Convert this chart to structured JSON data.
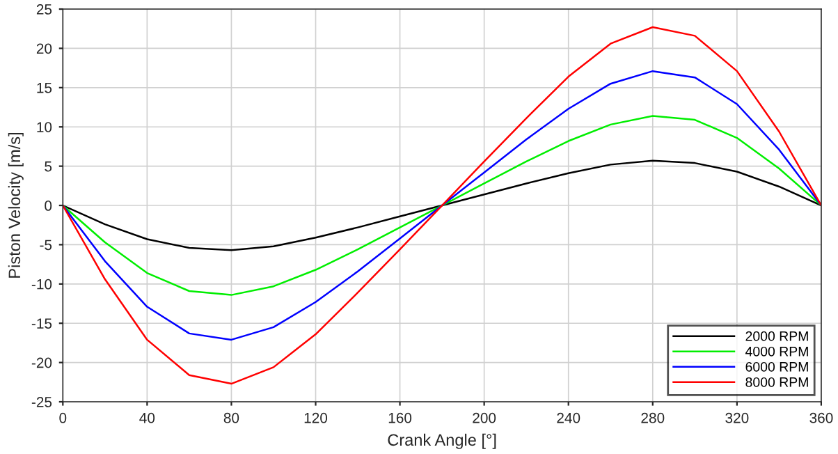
{
  "chart_data": {
    "type": "line",
    "xlabel": "Crank Angle [°]",
    "ylabel": "Piston Velocity [m/s]",
    "x": [
      0,
      20,
      40,
      60,
      80,
      100,
      120,
      140,
      160,
      180,
      200,
      220,
      240,
      260,
      280,
      300,
      320,
      340,
      360
    ],
    "series": [
      {
        "name": "2000 RPM",
        "color": "#000000",
        "values": [
          0,
          -2.4,
          -4.3,
          -5.4,
          -5.7,
          -5.2,
          -4.1,
          -2.8,
          -1.4,
          0,
          1.4,
          2.8,
          4.1,
          5.2,
          5.7,
          5.4,
          4.3,
          2.4,
          0
        ]
      },
      {
        "name": "4000 RPM",
        "color": "#00ee00",
        "values": [
          0,
          -4.7,
          -8.6,
          -10.9,
          -11.4,
          -10.3,
          -8.2,
          -5.6,
          -2.8,
          0,
          2.8,
          5.6,
          8.2,
          10.3,
          11.4,
          10.9,
          8.6,
          4.7,
          0
        ]
      },
      {
        "name": "6000 RPM",
        "color": "#0000ff",
        "values": [
          0,
          -7.1,
          -12.9,
          -16.3,
          -17.1,
          -15.5,
          -12.3,
          -8.4,
          -4.2,
          0,
          4.2,
          8.4,
          12.3,
          15.5,
          17.1,
          16.3,
          12.9,
          7.1,
          0
        ]
      },
      {
        "name": "8000 RPM",
        "color": "#ff0000",
        "values": [
          0,
          -9.4,
          -17.1,
          -21.6,
          -22.7,
          -20.6,
          -16.4,
          -11.1,
          -5.6,
          0,
          5.6,
          11.1,
          16.4,
          20.6,
          22.7,
          21.6,
          17.1,
          9.4,
          0
        ]
      }
    ],
    "xlim": [
      0,
      360
    ],
    "xticks": [
      0,
      40,
      80,
      120,
      160,
      200,
      240,
      280,
      320,
      360
    ],
    "ylim": [
      -25,
      25
    ],
    "yticks": [
      -25,
      -20,
      -15,
      -10,
      -5,
      0,
      5,
      10,
      15,
      20,
      25
    ],
    "grid": true,
    "legend": "bottom right",
    "marker": "none",
    "line_style": "solid"
  }
}
